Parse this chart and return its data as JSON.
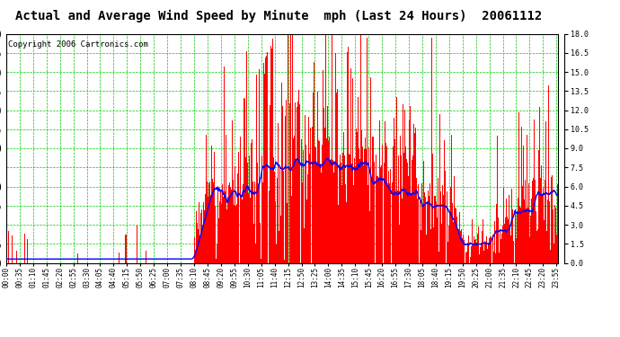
{
  "title": "Actual and Average Wind Speed by Minute  mph (Last 24 Hours)  20061112",
  "copyright": "Copyright 2006 Cartronics.com",
  "ylim": [
    0.0,
    18.0
  ],
  "yticks": [
    0.0,
    1.5,
    3.0,
    4.5,
    6.0,
    7.5,
    9.0,
    10.5,
    12.0,
    13.5,
    15.0,
    16.5,
    18.0
  ],
  "bar_color": "#ff0000",
  "line_color": "#0000ff",
  "grid_color": "#00cc00",
  "bg_color": "#ffffff",
  "title_fontsize": 10,
  "copyright_fontsize": 6.5,
  "tick_fontsize": 5.5,
  "tick_interval": 35
}
